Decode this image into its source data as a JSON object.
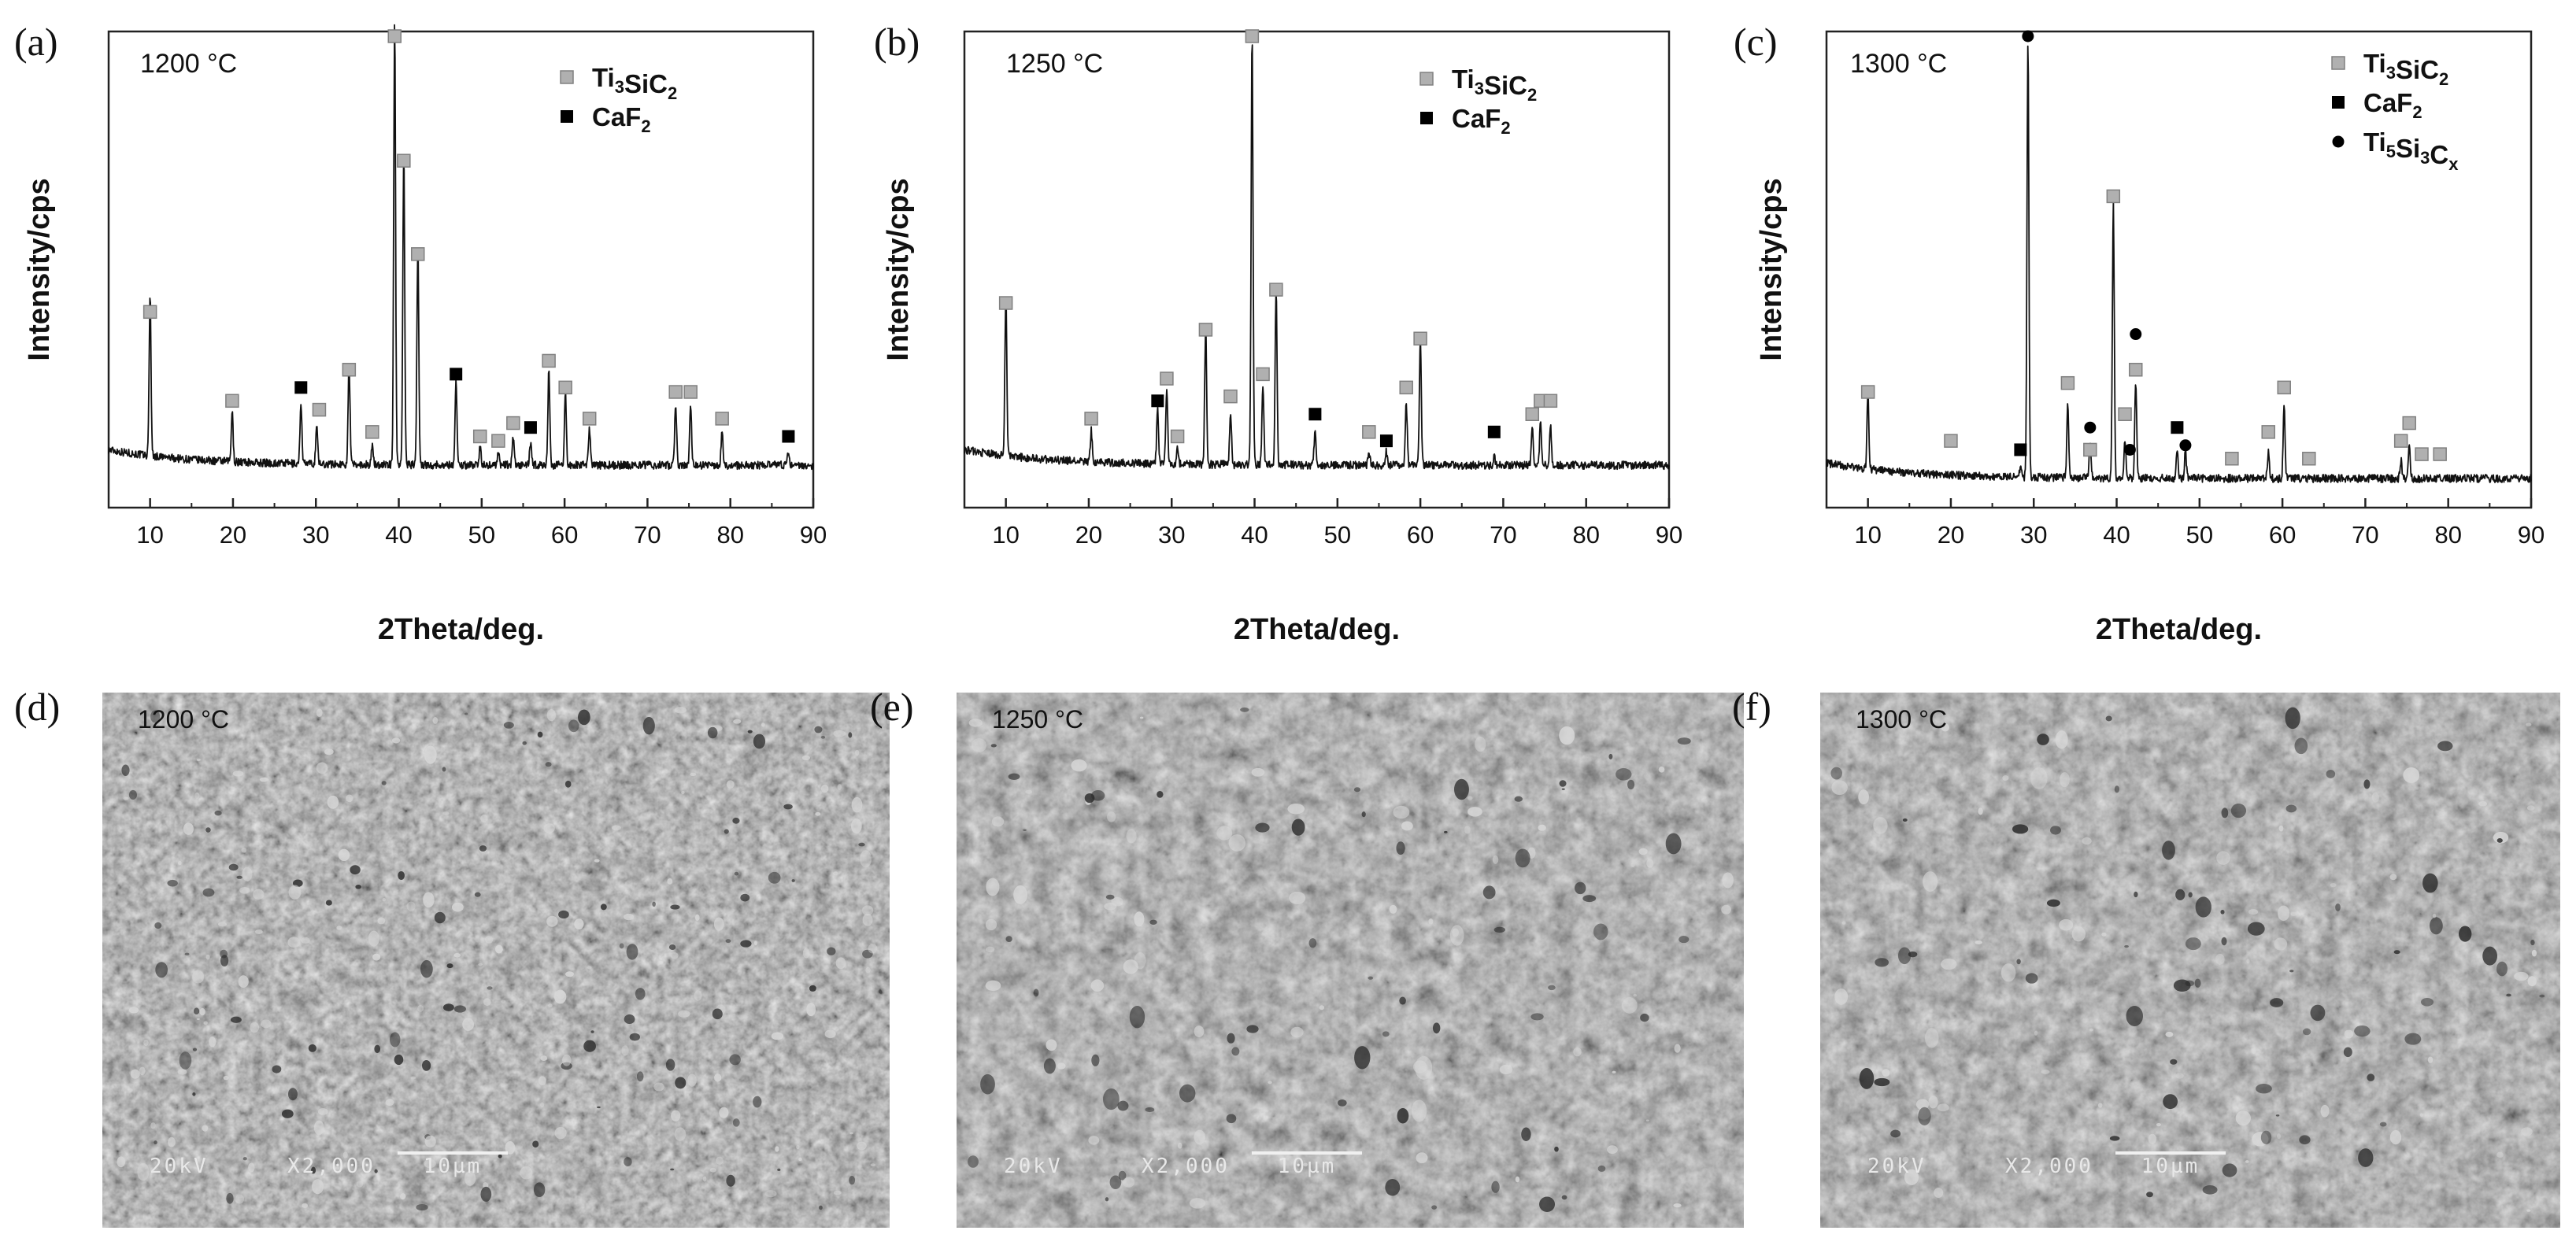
{
  "chart_data": [
    {
      "type": "line",
      "panel": "(a)",
      "temperature": "1200 °C",
      "xlabel": "2Theta/deg.",
      "ylabel": "Intensity/cps",
      "xlim": [
        5,
        90
      ],
      "xticks": [
        10,
        20,
        30,
        40,
        50,
        60,
        70,
        80,
        90
      ],
      "baseline": 0.06,
      "legend": [
        {
          "label": "Ti3SiC2",
          "parts": [
            [
              "Ti",
              ""
            ],
            [
              "3",
              "sub"
            ],
            [
              "SiC",
              ""
            ],
            [
              "2",
              "sub"
            ]
          ],
          "marker": "gray-square"
        },
        {
          "label": "CaF2",
          "parts": [
            [
              "CaF",
              ""
            ],
            [
              "2",
              "sub"
            ]
          ],
          "marker": "black-square"
        }
      ],
      "peaks": [
        {
          "x": 10.0,
          "h": 0.36
        },
        {
          "x": 19.9,
          "h": 0.11
        },
        {
          "x": 28.2,
          "h": 0.14
        },
        {
          "x": 30.1,
          "h": 0.09
        },
        {
          "x": 34.0,
          "h": 0.23
        },
        {
          "x": 36.8,
          "h": 0.04
        },
        {
          "x": 39.5,
          "h": 0.99
        },
        {
          "x": 40.6,
          "h": 0.7
        },
        {
          "x": 42.3,
          "h": 0.49
        },
        {
          "x": 46.9,
          "h": 0.19
        },
        {
          "x": 49.8,
          "h": 0.04
        },
        {
          "x": 52.0,
          "h": 0.03
        },
        {
          "x": 53.8,
          "h": 0.06
        },
        {
          "x": 55.9,
          "h": 0.05
        },
        {
          "x": 58.1,
          "h": 0.21
        },
        {
          "x": 60.1,
          "h": 0.16
        },
        {
          "x": 63.0,
          "h": 0.08
        },
        {
          "x": 73.4,
          "h": 0.14
        },
        {
          "x": 75.2,
          "h": 0.14
        },
        {
          "x": 79.0,
          "h": 0.08
        },
        {
          "x": 87.0,
          "h": 0.03
        }
      ],
      "markers": [
        {
          "x": 10.0,
          "y": 0.38,
          "phase": "Ti3SiC2"
        },
        {
          "x": 19.9,
          "y": 0.18,
          "phase": "Ti3SiC2"
        },
        {
          "x": 28.2,
          "y": 0.21,
          "phase": "CaF2"
        },
        {
          "x": 30.4,
          "y": 0.16,
          "phase": "Ti3SiC2"
        },
        {
          "x": 34.0,
          "y": 0.25,
          "phase": "Ti3SiC2"
        },
        {
          "x": 36.8,
          "y": 0.11,
          "phase": "Ti3SiC2"
        },
        {
          "x": 39.5,
          "y": 1.0,
          "phase": "Ti3SiC2"
        },
        {
          "x": 40.6,
          "y": 0.72,
          "phase": "Ti3SiC2"
        },
        {
          "x": 42.3,
          "y": 0.51,
          "phase": "Ti3SiC2"
        },
        {
          "x": 46.9,
          "y": 0.24,
          "phase": "CaF2"
        },
        {
          "x": 49.8,
          "y": 0.1,
          "phase": "Ti3SiC2"
        },
        {
          "x": 52.0,
          "y": 0.09,
          "phase": "Ti3SiC2"
        },
        {
          "x": 53.8,
          "y": 0.13,
          "phase": "Ti3SiC2"
        },
        {
          "x": 55.9,
          "y": 0.12,
          "phase": "CaF2"
        },
        {
          "x": 58.1,
          "y": 0.27,
          "phase": "Ti3SiC2"
        },
        {
          "x": 60.1,
          "y": 0.21,
          "phase": "Ti3SiC2"
        },
        {
          "x": 63.0,
          "y": 0.14,
          "phase": "Ti3SiC2"
        },
        {
          "x": 73.4,
          "y": 0.2,
          "phase": "Ti3SiC2"
        },
        {
          "x": 75.2,
          "y": 0.2,
          "phase": "Ti3SiC2"
        },
        {
          "x": 79.0,
          "y": 0.14,
          "phase": "Ti3SiC2"
        },
        {
          "x": 87.0,
          "y": 0.1,
          "phase": "CaF2"
        }
      ]
    },
    {
      "type": "line",
      "panel": "(b)",
      "temperature": "1250 °C",
      "xlabel": "2Theta/deg.",
      "ylabel": "Intensity/cps",
      "xlim": [
        5,
        90
      ],
      "xticks": [
        10,
        20,
        30,
        40,
        50,
        60,
        70,
        80,
        90
      ],
      "baseline": 0.06,
      "legend": [
        {
          "label": "Ti3SiC2",
          "parts": [
            [
              "Ti",
              ""
            ],
            [
              "3",
              "sub"
            ],
            [
              "SiC",
              ""
            ],
            [
              "2",
              "sub"
            ]
          ],
          "marker": "gray-square"
        },
        {
          "label": "CaF2",
          "parts": [
            [
              "CaF",
              ""
            ],
            [
              "2",
              "sub"
            ]
          ],
          "marker": "black-square"
        }
      ],
      "peaks": [
        {
          "x": 10.0,
          "h": 0.37
        },
        {
          "x": 20.3,
          "h": 0.07
        },
        {
          "x": 28.3,
          "h": 0.12
        },
        {
          "x": 29.4,
          "h": 0.17
        },
        {
          "x": 30.7,
          "h": 0.04
        },
        {
          "x": 34.1,
          "h": 0.31
        },
        {
          "x": 37.1,
          "h": 0.12
        },
        {
          "x": 39.7,
          "h": 0.97
        },
        {
          "x": 41.0,
          "h": 0.18
        },
        {
          "x": 42.6,
          "h": 0.4
        },
        {
          "x": 47.3,
          "h": 0.08
        },
        {
          "x": 53.8,
          "h": 0.03
        },
        {
          "x": 55.9,
          "h": 0.03
        },
        {
          "x": 58.3,
          "h": 0.14
        },
        {
          "x": 60.0,
          "h": 0.29
        },
        {
          "x": 68.9,
          "h": 0.02
        },
        {
          "x": 73.5,
          "h": 0.08
        },
        {
          "x": 74.5,
          "h": 0.1
        },
        {
          "x": 75.7,
          "h": 0.09
        }
      ],
      "markers": [
        {
          "x": 10.0,
          "y": 0.4,
          "phase": "Ti3SiC2"
        },
        {
          "x": 20.3,
          "y": 0.14,
          "phase": "Ti3SiC2"
        },
        {
          "x": 28.3,
          "y": 0.18,
          "phase": "CaF2"
        },
        {
          "x": 29.4,
          "y": 0.23,
          "phase": "Ti3SiC2"
        },
        {
          "x": 30.7,
          "y": 0.1,
          "phase": "Ti3SiC2"
        },
        {
          "x": 34.1,
          "y": 0.34,
          "phase": "Ti3SiC2"
        },
        {
          "x": 37.1,
          "y": 0.19,
          "phase": "Ti3SiC2"
        },
        {
          "x": 39.7,
          "y": 1.0,
          "phase": "Ti3SiC2"
        },
        {
          "x": 41.0,
          "y": 0.24,
          "phase": "Ti3SiC2"
        },
        {
          "x": 42.6,
          "y": 0.43,
          "phase": "Ti3SiC2"
        },
        {
          "x": 47.3,
          "y": 0.15,
          "phase": "CaF2"
        },
        {
          "x": 53.8,
          "y": 0.11,
          "phase": "Ti3SiC2"
        },
        {
          "x": 55.9,
          "y": 0.09,
          "phase": "CaF2"
        },
        {
          "x": 58.3,
          "y": 0.21,
          "phase": "Ti3SiC2"
        },
        {
          "x": 60.0,
          "y": 0.32,
          "phase": "Ti3SiC2"
        },
        {
          "x": 68.9,
          "y": 0.11,
          "phase": "CaF2"
        },
        {
          "x": 73.5,
          "y": 0.15,
          "phase": "Ti3SiC2"
        },
        {
          "x": 74.5,
          "y": 0.18,
          "phase": "Ti3SiC2"
        },
        {
          "x": 75.7,
          "y": 0.18,
          "phase": "Ti3SiC2"
        }
      ]
    },
    {
      "type": "line",
      "panel": "(c)",
      "temperature": "1300 °C",
      "xlabel": "2Theta/deg.",
      "ylabel": "Intensity/cps",
      "xlim": [
        5,
        90
      ],
      "xticks": [
        10,
        20,
        30,
        40,
        50,
        60,
        70,
        80,
        90
      ],
      "baseline": 0.03,
      "legend": [
        {
          "label": "Ti3SiC2",
          "parts": [
            [
              "Ti",
              ""
            ],
            [
              "3",
              "sub"
            ],
            [
              "SiC",
              ""
            ],
            [
              "2",
              "sub"
            ]
          ],
          "marker": "gray-square"
        },
        {
          "label": "CaF2",
          "parts": [
            [
              "CaF",
              ""
            ],
            [
              "2",
              "sub"
            ]
          ],
          "marker": "black-square"
        },
        {
          "label": "Ti5Si3Cx",
          "parts": [
            [
              "Ti",
              ""
            ],
            [
              "5",
              "sub"
            ],
            [
              "Si",
              ""
            ],
            [
              "3",
              "sub"
            ],
            [
              "C",
              ""
            ],
            [
              "x",
              "sub"
            ]
          ],
          "marker": "black-circle"
        }
      ],
      "peaks": [
        {
          "x": 10.0,
          "h": 0.17
        },
        {
          "x": 28.4,
          "h": 0.02
        },
        {
          "x": 29.3,
          "h": 0.98
        },
        {
          "x": 34.1,
          "h": 0.16
        },
        {
          "x": 36.8,
          "h": 0.08
        },
        {
          "x": 39.6,
          "h": 0.62
        },
        {
          "x": 41.0,
          "h": 0.09
        },
        {
          "x": 42.3,
          "h": 0.22
        },
        {
          "x": 47.3,
          "h": 0.07
        },
        {
          "x": 48.3,
          "h": 0.06
        },
        {
          "x": 58.3,
          "h": 0.06
        },
        {
          "x": 60.2,
          "h": 0.16
        },
        {
          "x": 74.3,
          "h": 0.04
        },
        {
          "x": 75.3,
          "h": 0.07
        }
      ],
      "markers": [
        {
          "x": 10.0,
          "y": 0.2,
          "phase": "Ti3SiC2"
        },
        {
          "x": 20.0,
          "y": 0.09,
          "phase": "Ti3SiC2"
        },
        {
          "x": 28.4,
          "y": 0.07,
          "phase": "CaF2"
        },
        {
          "x": 29.3,
          "y": 1.0,
          "phase": "Ti5Si3Cx"
        },
        {
          "x": 34.1,
          "y": 0.22,
          "phase": "Ti3SiC2"
        },
        {
          "x": 36.8,
          "y": 0.12,
          "phase": "Ti5Si3Cx"
        },
        {
          "x": 36.8,
          "y": 0.07,
          "phase": "Ti3SiC2"
        },
        {
          "x": 39.6,
          "y": 0.64,
          "phase": "Ti3SiC2"
        },
        {
          "x": 41.0,
          "y": 0.15,
          "phase": "Ti3SiC2"
        },
        {
          "x": 41.6,
          "y": 0.07,
          "phase": "Ti5Si3Cx"
        },
        {
          "x": 42.3,
          "y": 0.33,
          "phase": "Ti5Si3Cx"
        },
        {
          "x": 42.3,
          "y": 0.25,
          "phase": "Ti3SiC2"
        },
        {
          "x": 47.3,
          "y": 0.12,
          "phase": "CaF2"
        },
        {
          "x": 48.3,
          "y": 0.08,
          "phase": "Ti5Si3Cx"
        },
        {
          "x": 53.9,
          "y": 0.05,
          "phase": "Ti3SiC2"
        },
        {
          "x": 58.3,
          "y": 0.11,
          "phase": "Ti3SiC2"
        },
        {
          "x": 60.2,
          "y": 0.21,
          "phase": "Ti3SiC2"
        },
        {
          "x": 63.2,
          "y": 0.05,
          "phase": "Ti3SiC2"
        },
        {
          "x": 74.3,
          "y": 0.09,
          "phase": "Ti3SiC2"
        },
        {
          "x": 75.3,
          "y": 0.13,
          "phase": "Ti3SiC2"
        },
        {
          "x": 76.8,
          "y": 0.06,
          "phase": "Ti3SiC2"
        },
        {
          "x": 79.0,
          "y": 0.06,
          "phase": "Ti3SiC2"
        }
      ]
    }
  ],
  "sem_images": [
    {
      "panel": "(d)",
      "temperature": "1200 °C",
      "voltage": "20kV",
      "magnification": "X2,000",
      "scale_bar": "10µm",
      "tone": "#5f5f5f"
    },
    {
      "panel": "(e)",
      "temperature": "1250 °C",
      "voltage": "20kV",
      "magnification": "X2,000",
      "scale_bar": "10µm",
      "tone": "#6a6a6a"
    },
    {
      "panel": "(f)",
      "temperature": "1300 °C",
      "voltage": "20kV",
      "magnification": "X2,000",
      "scale_bar": "10µm",
      "tone": "#6e6e6e"
    }
  ],
  "colors": {
    "ti3sic2_marker": "#b0b0b0",
    "caf2_marker": "#000000",
    "ti5si3cx_marker": "#000000",
    "trace": "#111111"
  }
}
